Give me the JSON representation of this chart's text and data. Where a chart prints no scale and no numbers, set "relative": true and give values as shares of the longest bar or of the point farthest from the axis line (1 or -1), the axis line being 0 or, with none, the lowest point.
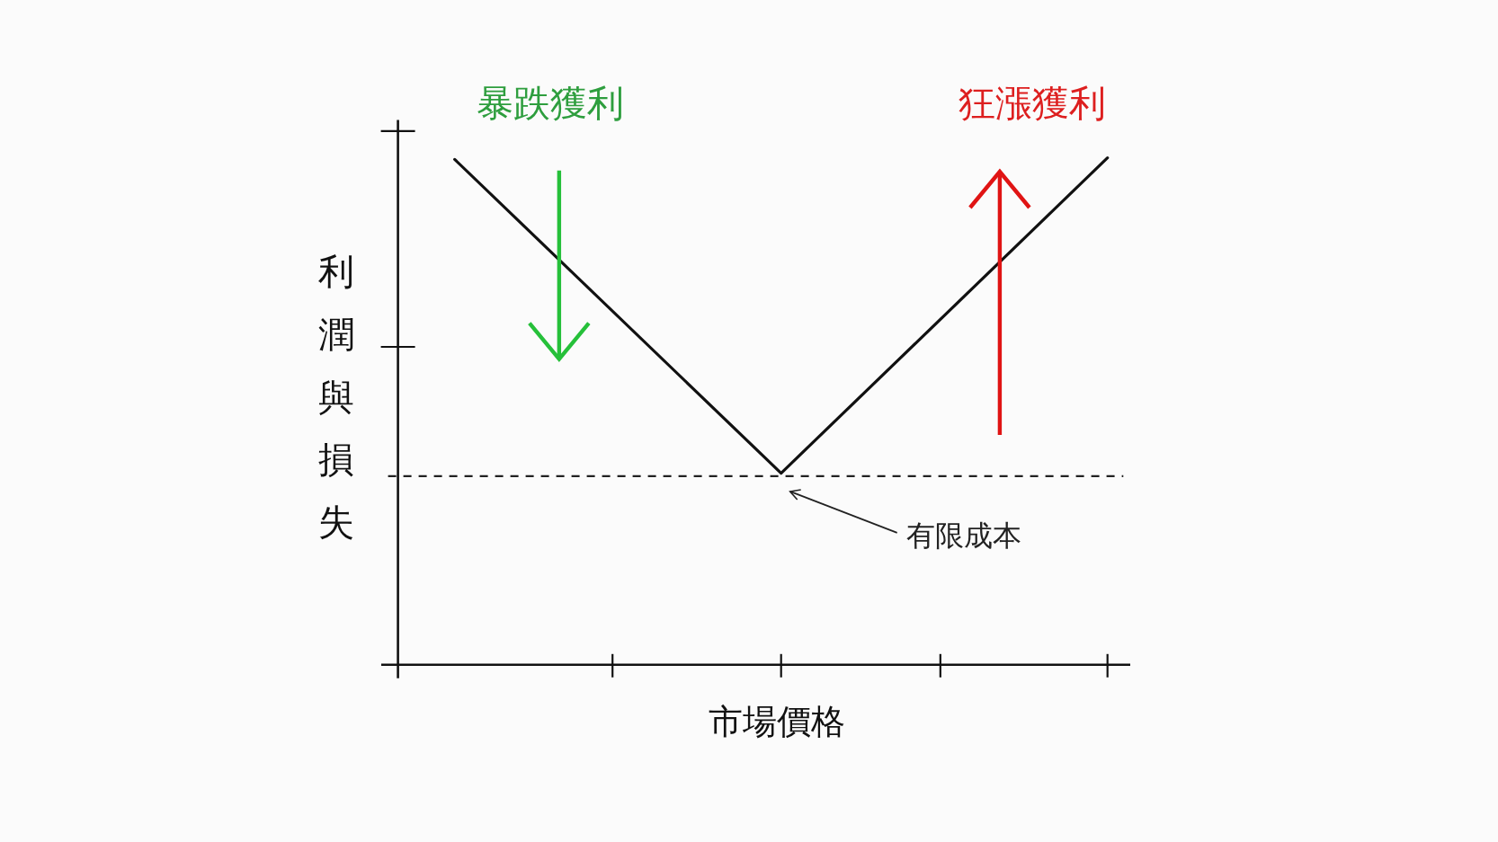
{
  "chart_data": {
    "type": "line",
    "relative": true,
    "categories": [
      null,
      null,
      null
    ],
    "series": [
      {
        "color": "#111111",
        "values": [
          0.997,
          0.378,
          1
        ]
      }
    ],
    "xlabel": "市場價格",
    "ylabel": "利潤與損失",
    "annotations": [
      "暴跌獲利",
      "狂漲獲利"
    ],
    "ref_lines": [
      {
        "axis": "y",
        "value": 0.372,
        "label": "有限成本",
        "color": "#222222",
        "line_style": "dashed"
      }
    ]
  }
}
